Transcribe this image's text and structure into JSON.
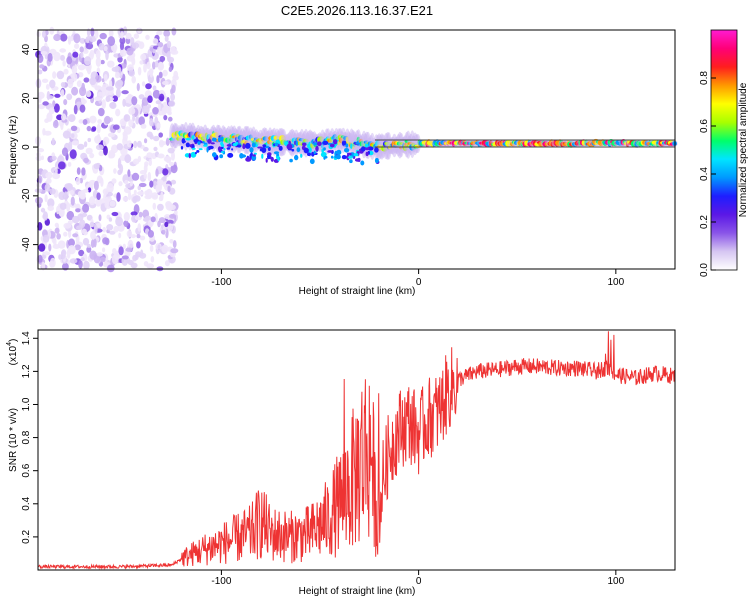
{
  "page": {
    "title": "C2E5.2026.113.16.37.E21"
  },
  "colors": {
    "snr_line": "#ee3333",
    "axes": "#000000",
    "guide": "#444444",
    "colormap": [
      "#ffffff",
      "#d6c6f2",
      "#8a55e8",
      "#5b18e6",
      "#1e1eff",
      "#0099ff",
      "#00e5ff",
      "#00ff6a",
      "#a8ff00",
      "#ffff00",
      "#ff9900",
      "#ff1e1e",
      "#ff0077",
      "#ff1bd2"
    ]
  },
  "chart_data": [
    {
      "type": "heatmap",
      "title": "C2E5.2026.113.16.37.E21",
      "xlabel": "Height of straight line (km)",
      "ylabel": "Frequency (Hz)",
      "xlim": [
        -193,
        130
      ],
      "ylim": [
        -50,
        48
      ],
      "xticks": [
        -100,
        0,
        100
      ],
      "yticks": [
        -40,
        -20,
        0,
        20,
        40
      ],
      "xtick_labels": [
        "-100",
        "0",
        "100"
      ],
      "ytick_labels": [
        "-40",
        "-20",
        "0",
        "20",
        "40"
      ],
      "ridge": {
        "description_points_x": [
          -130,
          -110,
          -90,
          -70,
          -55,
          -40,
          -30,
          -22,
          -15,
          -5,
          0,
          20,
          50,
          80,
          95,
          110,
          130
        ],
        "description_points_y": [
          5,
          4,
          3,
          2,
          1.5,
          3,
          1.5,
          0,
          0.5,
          1,
          1.5,
          1.5,
          1.5,
          1.5,
          1.8,
          1.5,
          1.5
        ]
      },
      "noise_region_x": [
        -193,
        -123
      ],
      "colorbar": {
        "label": "Normalized spectral amplitude",
        "range": [
          0,
          1
        ],
        "ticks": [
          0.0,
          0.2,
          0.4,
          0.6,
          0.8
        ],
        "tick_labels": [
          "0.0",
          "0.2",
          "0.4",
          "0.6",
          "0.8"
        ]
      }
    },
    {
      "type": "line",
      "xlabel": "Height of straight line (km)",
      "ylabel": "SNR (10 * v/v)",
      "yscale_label": "(x10",
      "yscale_exp": "4",
      "xlim": [
        -193,
        130
      ],
      "ylim": [
        0,
        1.45
      ],
      "xticks": [
        -100,
        0,
        100
      ],
      "yticks": [
        0.2,
        0.4,
        0.6,
        0.8,
        1.0,
        1.2,
        1.4
      ],
      "xtick_labels": [
        "-100",
        "0",
        "100"
      ],
      "ytick_labels": [
        "0.2",
        "0.4",
        "0.6",
        "0.8",
        "1.0",
        "1.2",
        "1.4"
      ],
      "series": [
        {
          "name": "SNR",
          "x": [
            -193,
            -150,
            -125,
            -120,
            -112,
            -105,
            -95,
            -85,
            -80,
            -75,
            -65,
            -55,
            -45,
            -38,
            -33,
            -28,
            -24,
            -22,
            -20,
            -18,
            -15,
            -10,
            -5,
            0,
            5,
            10,
            15,
            20,
            30,
            40,
            50,
            60,
            70,
            80,
            90,
            95,
            100,
            110,
            120,
            130
          ],
          "values": [
            0.02,
            0.02,
            0.03,
            0.07,
            0.11,
            0.14,
            0.18,
            0.22,
            0.3,
            0.22,
            0.2,
            0.22,
            0.32,
            0.45,
            0.55,
            0.7,
            0.75,
            0.4,
            0.35,
            0.55,
            0.72,
            0.85,
            0.9,
            0.82,
            0.92,
            0.95,
            1.08,
            1.15,
            1.2,
            1.21,
            1.23,
            1.23,
            1.22,
            1.22,
            1.2,
            1.22,
            1.18,
            1.16,
            1.19,
            1.17
          ]
        }
      ]
    }
  ]
}
